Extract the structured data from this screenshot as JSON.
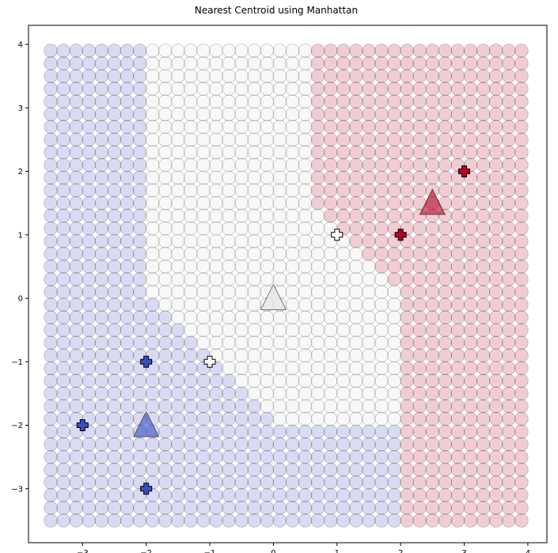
{
  "chart_data": {
    "type": "scatter",
    "title": "Nearest Centroid using Manhattan",
    "xlabel": "",
    "ylabel": "",
    "xlim": [
      -3.85,
      4.3
    ],
    "ylim": [
      -3.85,
      4.3
    ],
    "x_ticks": [
      -3,
      -2,
      -1,
      0,
      1,
      2,
      3,
      4
    ],
    "y_ticks": [
      -3,
      -2,
      -1,
      0,
      1,
      2,
      3,
      4
    ],
    "x_tick_labels": [
      "−3",
      "−2",
      "−1",
      "0",
      "1",
      "2",
      "3",
      "4"
    ],
    "y_tick_labels": [
      "−3",
      "−2",
      "−1",
      "0",
      "1",
      "2",
      "3",
      "4"
    ],
    "grid": false,
    "colors": {
      "blue": "#3b4cc0",
      "white": "#dddddd",
      "red": "#b40426"
    },
    "grid_points": {
      "x_start": -3.5,
      "x_end": 3.9,
      "y_start": -3.5,
      "y_end": 3.9,
      "step": 0.2,
      "classification": "nearest centroid by Manhattan distance"
    },
    "centroids": [
      {
        "class": "blue",
        "x": -2.0,
        "y": -2.0
      },
      {
        "class": "white",
        "x": 0.0,
        "y": 0.0
      },
      {
        "class": "red",
        "x": 2.5,
        "y": 1.5
      }
    ],
    "training_points": [
      {
        "class": "blue",
        "x": -3,
        "y": -2
      },
      {
        "class": "blue",
        "x": -2,
        "y": -1
      },
      {
        "class": "blue",
        "x": -2,
        "y": -3
      },
      {
        "class": "white",
        "x": -1,
        "y": -1
      },
      {
        "class": "white",
        "x": 1,
        "y": 1
      },
      {
        "class": "red",
        "x": 2,
        "y": 1
      },
      {
        "class": "red",
        "x": 3,
        "y": 2
      }
    ]
  }
}
